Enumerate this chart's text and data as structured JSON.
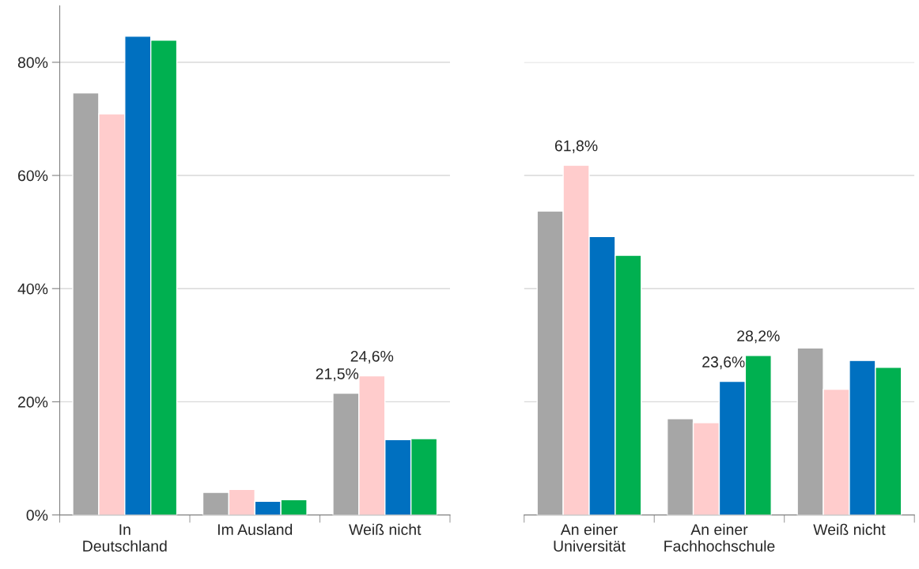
{
  "chart_data": [
    {
      "type": "bar",
      "categories": [
        "In\nDeutschland",
        "Im Ausland",
        "Weiß nicht"
      ],
      "ylim": [
        0,
        90
      ],
      "yticks": [
        {
          "value": 0,
          "label": "0%"
        },
        {
          "value": 20,
          "label": "20%"
        },
        {
          "value": 40,
          "label": "40%"
        },
        {
          "value": 60,
          "label": "60%"
        },
        {
          "value": 80,
          "label": "80%"
        }
      ],
      "grid": "y",
      "legend": false,
      "series": [
        {
          "color": "#a6a6a6",
          "values": [
            74.6,
            4.0,
            21.5
          ],
          "value_labels": [
            null,
            null,
            "21,5%"
          ]
        },
        {
          "color": "#ffcccc",
          "values": [
            70.9,
            4.5,
            24.6
          ],
          "value_labels": [
            null,
            null,
            "24,6%"
          ]
        },
        {
          "color": "#0070c0",
          "values": [
            84.6,
            2.4,
            13.3
          ]
        },
        {
          "color": "#00b050",
          "values": [
            83.9,
            2.7,
            13.5
          ]
        }
      ]
    },
    {
      "type": "bar",
      "categories": [
        "An einer\nUniversität",
        "An einer\nFachhochschule",
        "Weiß nicht"
      ],
      "ylim": [
        0,
        80
      ],
      "yticks": [
        {
          "value": 0,
          "label": null
        },
        {
          "value": 20,
          "label": null
        },
        {
          "value": 40,
          "label": null
        },
        {
          "value": 60,
          "label": null
        },
        {
          "value": 80,
          "label": null
        }
      ],
      "grid": "y",
      "legend": false,
      "tick_labels": "x",
      "series": [
        {
          "color": "#a6a6a6",
          "values": [
            53.7,
            17.0,
            29.5
          ]
        },
        {
          "color": "#ffcccc",
          "values": [
            61.8,
            16.3,
            22.2
          ],
          "value_labels": [
            "61,8%",
            null,
            null
          ]
        },
        {
          "color": "#0070c0",
          "values": [
            49.2,
            23.6,
            27.3
          ],
          "value_labels": [
            null,
            "23,6%",
            null
          ]
        },
        {
          "color": "#00b050",
          "values": [
            45.9,
            28.2,
            26.1
          ],
          "value_labels": [
            null,
            "28,2%",
            null
          ]
        }
      ]
    }
  ]
}
